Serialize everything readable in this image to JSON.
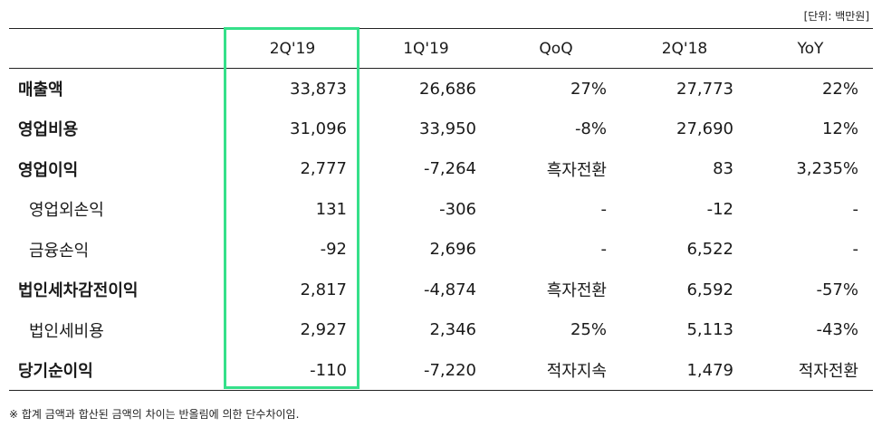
{
  "unit_note": "[단위: 백만원]",
  "columns": [
    "2Q'19",
    "1Q'19",
    "QoQ",
    "2Q'18",
    "YoY"
  ],
  "rows": [
    {
      "label": "매출액",
      "values": [
        "33,873",
        "26,686",
        "27%",
        "27,773",
        "22%"
      ]
    },
    {
      "label": "영업비용",
      "values": [
        "31,096",
        "33,950",
        "-8%",
        "27,690",
        "12%"
      ]
    },
    {
      "label": "영업이익",
      "values": [
        "2,777",
        "-7,264",
        "흑자전환",
        "83",
        "3,235%"
      ]
    },
    {
      "label": "영업외손익",
      "values": [
        "131",
        "-306",
        "-",
        "-12",
        "-"
      ]
    },
    {
      "label": "금융손익",
      "values": [
        "-92",
        "2,696",
        "-",
        "6,522",
        "-"
      ]
    },
    {
      "label": "법인세차감전이익",
      "values": [
        "2,817",
        "-4,874",
        "흑자전환",
        "6,592",
        "-57%"
      ]
    },
    {
      "label": "법인세비용",
      "values": [
        "2,927",
        "2,346",
        "25%",
        "5,113",
        "-43%"
      ]
    },
    {
      "label": "당기순이익",
      "values": [
        "-110",
        "-7,220",
        "적자지속",
        "1,479",
        "적자전환"
      ]
    }
  ],
  "highlight_color": "#35e08a",
  "footnote": "※ 합계 금액과 합산된 금액의 차이는 반올림에 의한 단수차이임."
}
